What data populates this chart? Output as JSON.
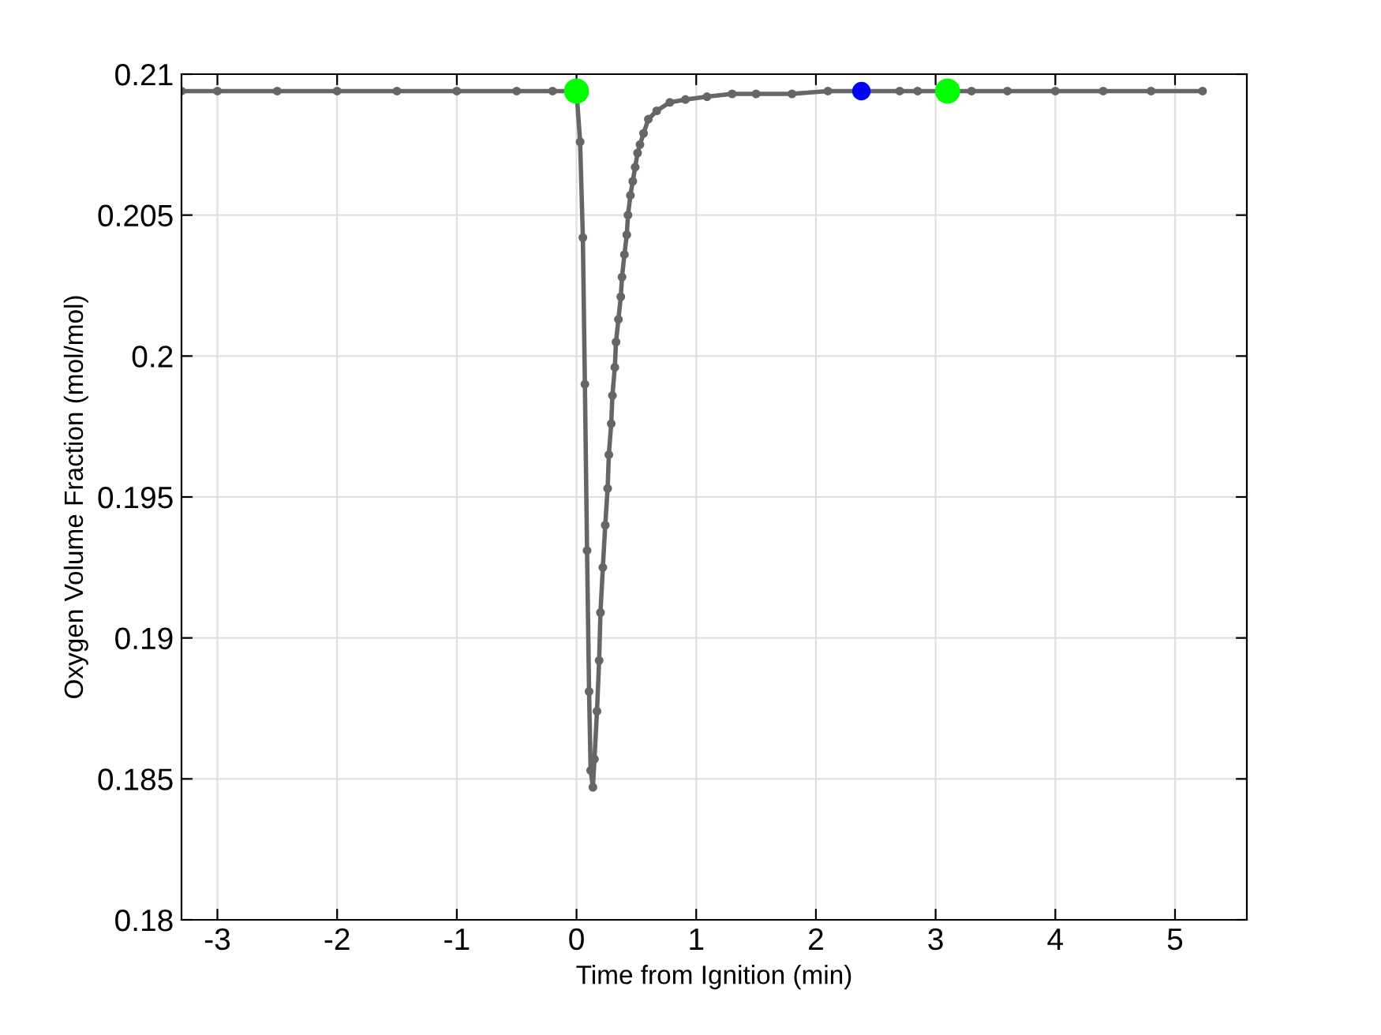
{
  "chart_data": {
    "type": "line",
    "xlabel": "Time from Ignition (min)",
    "ylabel": "Oxygen Volume Fraction (mol/mol)",
    "xlim": [
      -3.3,
      5.6
    ],
    "ylim": [
      0.18,
      0.21
    ],
    "xticks": [
      -3,
      -2,
      -1,
      0,
      1,
      2,
      3,
      4,
      5
    ],
    "yticks": [
      0.18,
      0.185,
      0.19,
      0.195,
      0.2,
      0.205,
      0.21
    ],
    "grid": true,
    "series": [
      {
        "color": "#666666",
        "marker": "circle",
        "line_style": "solid",
        "x": [
          -3.3,
          -3.0,
          -2.5,
          -2.0,
          -1.5,
          -1.0,
          -0.5,
          -0.2,
          0,
          0.03,
          0.053,
          0.07,
          0.088,
          0.105,
          0.118,
          0.137,
          0.15,
          0.171,
          0.189,
          0.2,
          0.22,
          0.24,
          0.26,
          0.27,
          0.29,
          0.3,
          0.32,
          0.33,
          0.35,
          0.37,
          0.38,
          0.4,
          0.42,
          0.43,
          0.45,
          0.47,
          0.49,
          0.51,
          0.53,
          0.56,
          0.6,
          0.67,
          0.78,
          0.91,
          1.09,
          1.3,
          1.5,
          1.8,
          2.1,
          2.4,
          2.7,
          2.85,
          3.3,
          3.6,
          4.0,
          4.4,
          4.8,
          5.23
        ],
        "values": [
          0.2094,
          0.2094,
          0.2094,
          0.2094,
          0.2094,
          0.2094,
          0.2094,
          0.2094,
          0.2094,
          0.2076,
          0.2042,
          0.199,
          0.1931,
          0.1881,
          0.1853,
          0.1847,
          0.1857,
          0.1874,
          0.1892,
          0.1909,
          0.1925,
          0.194,
          0.1953,
          0.1965,
          0.1976,
          0.1986,
          0.1996,
          0.2005,
          0.2013,
          0.2021,
          0.2028,
          0.2036,
          0.2043,
          0.205,
          0.2057,
          0.2062,
          0.2067,
          0.2072,
          0.2075,
          0.2079,
          0.2084,
          0.2087,
          0.209,
          0.2091,
          0.2092,
          0.2093,
          0.2093,
          0.2093,
          0.2094,
          0.2094,
          0.2094,
          0.2094,
          0.2094,
          0.2094,
          0.2094,
          0.2094,
          0.2094,
          0.2094
        ]
      },
      {
        "type": "scatter",
        "color": "#00ff00",
        "marker": "circle",
        "x": [
          0,
          3.1
        ],
        "values": [
          0.2094,
          0.2094
        ]
      },
      {
        "type": "scatter",
        "color": "#0000ff",
        "marker": "circle",
        "x": [
          2.38
        ],
        "values": [
          0.2094
        ]
      }
    ]
  }
}
